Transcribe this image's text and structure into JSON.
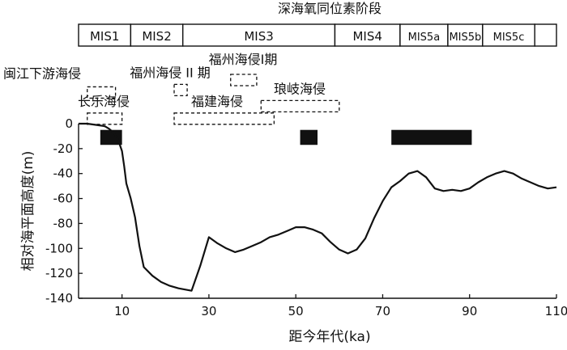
{
  "chart_data": {
    "type": "line",
    "title": "深海氧同位素阶段",
    "xlabel": "距今年代(ka)",
    "ylabel": "相对海平面高度(m)",
    "xlim": [
      0,
      110
    ],
    "ylim": [
      -140,
      0
    ],
    "x_ticks": [
      10,
      30,
      50,
      70,
      90,
      110
    ],
    "y_ticks": [
      0,
      -20,
      -40,
      -60,
      -80,
      -100,
      -120,
      -140
    ],
    "mis_stages": [
      {
        "label": "MIS1",
        "start": 0,
        "end": 12
      },
      {
        "label": "MIS2",
        "start": 12,
        "end": 24
      },
      {
        "label": "MIS3",
        "start": 24,
        "end": 59
      },
      {
        "label": "MIS4",
        "start": 59,
        "end": 74
      },
      {
        "label": "MIS5a",
        "start": 74,
        "end": 85
      },
      {
        "label": "MIS5b",
        "start": 85,
        "end": 93
      },
      {
        "label": "MIS5c",
        "start": 93,
        "end": 105
      },
      {
        "label": "",
        "start": 105,
        "end": 110
      }
    ],
    "transgressions": [
      {
        "label": "闽江下游海侵",
        "x_start": 2,
        "x_end": 8.5,
        "y_center": 25
      },
      {
        "label": "福州海侵 II 期",
        "x_start": 22,
        "x_end": 25,
        "y_center": 27
      },
      {
        "label": "福州海侵I期",
        "x_start": 35,
        "x_end": 41,
        "y_center": 35
      },
      {
        "label": "长乐海侵",
        "x_start": 2,
        "x_end": 10,
        "y_center": 4
      },
      {
        "label": "福建海侵",
        "x_start": 22,
        "x_end": 45,
        "y_center": 4
      },
      {
        "label": "琅岐海侵",
        "x_start": 42,
        "x_end": 60,
        "y_center": 14
      }
    ],
    "black_bars": [
      {
        "x_start": 5,
        "x_end": 10,
        "y_top": -5,
        "y_bottom": -17
      },
      {
        "x_start": 51,
        "x_end": 55,
        "y_top": -5,
        "y_bottom": -17
      },
      {
        "x_start": 72,
        "x_end": 90.5,
        "y_top": -5,
        "y_bottom": -17
      }
    ],
    "series": [
      {
        "x": [
          0,
          2,
          4,
          6,
          7,
          8,
          9,
          10,
          10.5,
          11,
          12,
          13,
          14,
          15,
          17,
          19,
          21,
          23,
          26,
          28,
          30,
          32,
          34,
          36,
          38,
          40,
          42,
          44,
          46,
          48,
          50,
          52,
          54,
          56,
          58,
          60,
          62,
          64,
          66,
          68,
          70,
          72,
          74,
          76,
          78,
          80,
          82,
          84,
          86,
          88,
          90,
          92,
          94,
          96,
          98,
          100,
          102,
          104,
          106,
          108,
          110
        ],
        "y": [
          0,
          0,
          -1,
          -2,
          -4,
          -7,
          -12,
          -22,
          -34,
          -48,
          -60,
          -75,
          -98,
          -115,
          -122,
          -127,
          -130,
          -132,
          -134,
          -114,
          -91,
          -96,
          -100,
          -103,
          -101,
          -98,
          -95,
          -91,
          -89,
          -86,
          -83,
          -83,
          -85,
          -88,
          -95,
          -101,
          -104,
          -101,
          -92,
          -76,
          -62,
          -51,
          -46,
          -40,
          -38,
          -43,
          -52,
          -54,
          -53,
          -54,
          -52,
          -47,
          -43,
          -40,
          -38,
          -40,
          -44,
          -47,
          -50,
          -52,
          -51
        ]
      }
    ]
  }
}
